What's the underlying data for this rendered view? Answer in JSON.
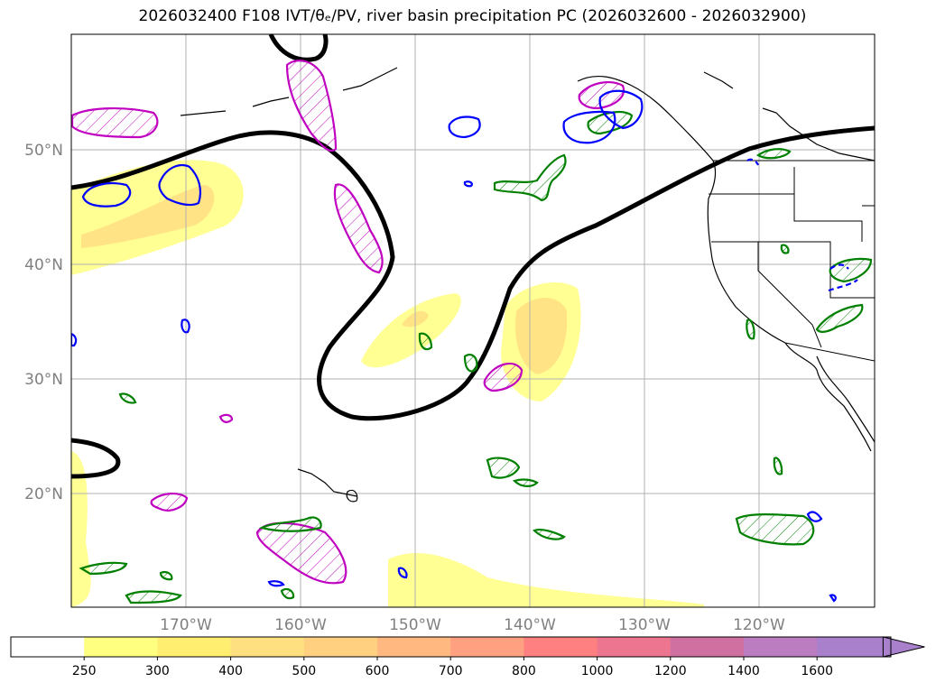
{
  "title": "2026032400 F108 IVT/θₑ/PV, river basin precipitation PC (2026032600 - 2026032900)",
  "map": {
    "projection": "lat-lon",
    "lat_labels": [
      "50°N",
      "40°N",
      "30°N",
      "20°N"
    ],
    "lon_labels": [
      "170°W",
      "160°W",
      "150°W",
      "140°W",
      "130°W",
      "120°W"
    ],
    "layers": {
      "ivt_shading": "IVT",
      "theta_e_contour": "thick black contour",
      "pv_contour": "magenta hatched",
      "precip_pc_positive": "green hatched",
      "precip_pc_negative": "blue"
    }
  },
  "colorbar": {
    "ticks": [
      "250",
      "300",
      "400",
      "500",
      "600",
      "700",
      "800",
      "1000",
      "1200",
      "1400",
      "1600"
    ],
    "colors": [
      "#ffffff",
      "#ffff80",
      "#ffee70",
      "#ffe080",
      "#ffd080",
      "#ffb880",
      "#ffa080",
      "#ff8080",
      "#ee7590",
      "#d070a0",
      "#bb7cc0",
      "#a880cc"
    ],
    "extend": "max"
  },
  "colors": {
    "theta_e": "#000000",
    "pv": "#c000c0",
    "precip_pos": "#008000",
    "precip_neg": "#0000ff",
    "grid": "#b0b0b0",
    "coast": "#000000"
  }
}
